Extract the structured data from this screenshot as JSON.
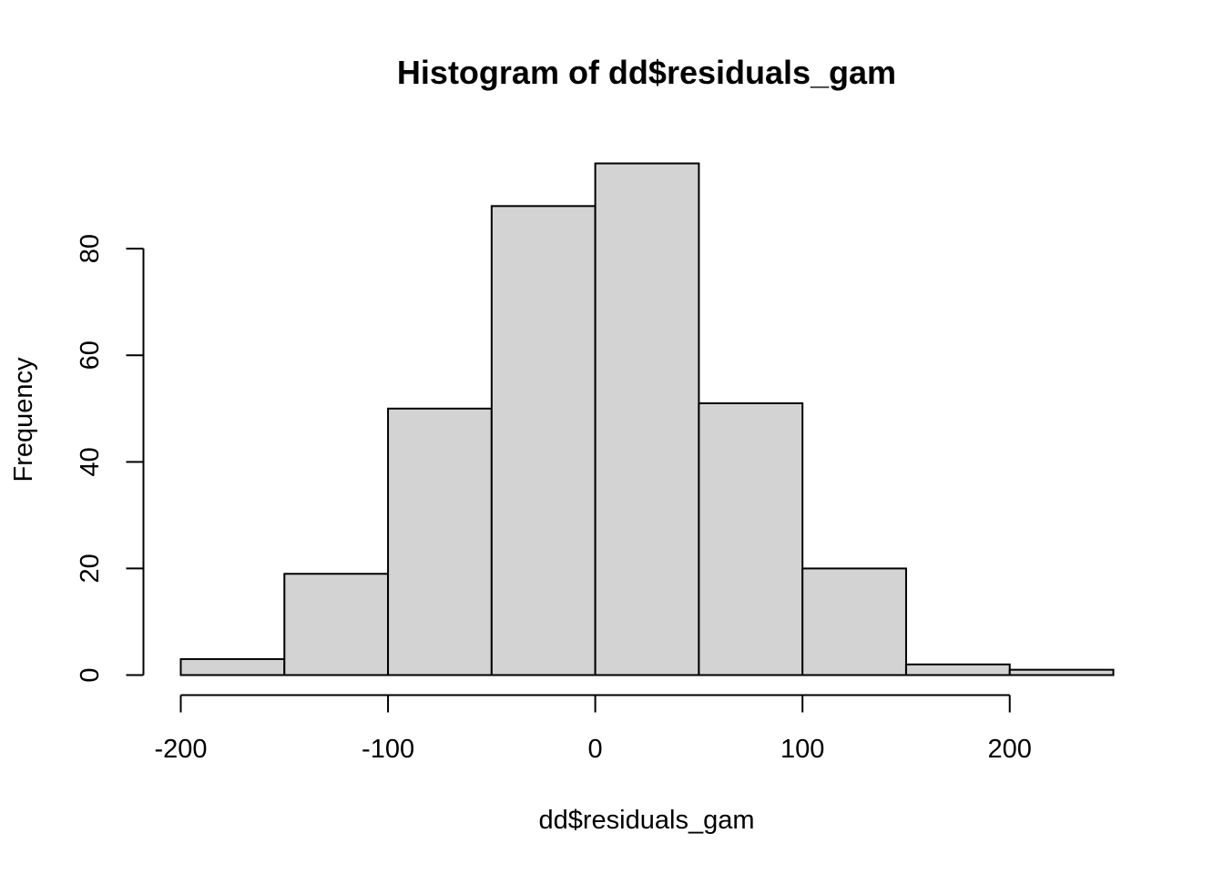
{
  "chart_data": {
    "type": "bar",
    "title": "Histogram of dd$residuals_gam",
    "xlabel": "dd$residuals_gam",
    "ylabel": "Frequency",
    "bins": [
      {
        "start": -200,
        "end": -150,
        "count": 3
      },
      {
        "start": -150,
        "end": -100,
        "count": 19
      },
      {
        "start": -100,
        "end": -50,
        "count": 50
      },
      {
        "start": -50,
        "end": 0,
        "count": 88
      },
      {
        "start": 0,
        "end": 50,
        "count": 96
      },
      {
        "start": 50,
        "end": 100,
        "count": 51
      },
      {
        "start": 100,
        "end": 150,
        "count": 20
      },
      {
        "start": 150,
        "end": 200,
        "count": 2
      },
      {
        "start": 200,
        "end": 250,
        "count": 1
      }
    ],
    "x_ticks": [
      -200,
      -100,
      0,
      100,
      200
    ],
    "y_ticks": [
      0,
      20,
      40,
      60,
      80
    ],
    "xlim": [
      -200,
      250
    ],
    "ylim": [
      0,
      96
    ],
    "bar_color": "#d3d3d3",
    "edge_color": "#000000",
    "grid": false
  }
}
